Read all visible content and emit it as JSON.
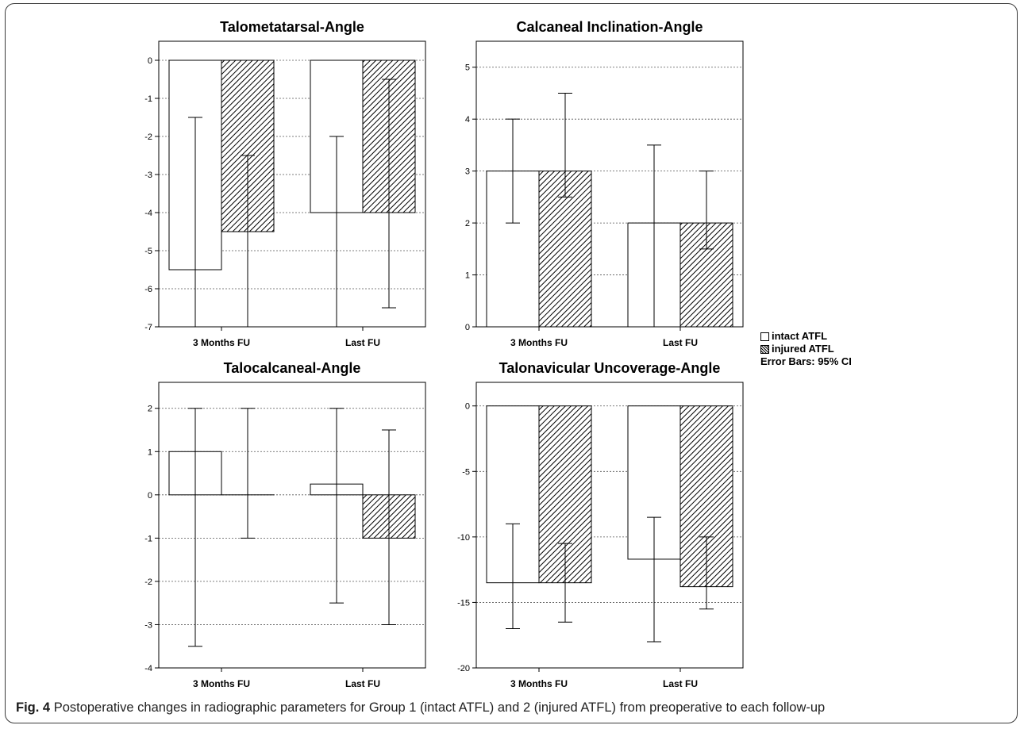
{
  "chart_data": [
    {
      "type": "bar",
      "title": "Talometatarsal-Angle",
      "categories": [
        "3 Months FU",
        "Last FU"
      ],
      "ylim": [
        -7,
        0.5
      ],
      "yticks": [
        0,
        -1,
        -2,
        -3,
        -4,
        -5,
        -6,
        -7
      ],
      "series": [
        {
          "name": "intact ATFL",
          "values": [
            -5.5,
            -4
          ],
          "ci_low": [
            -7,
            -7
          ],
          "ci_high": [
            -1.5,
            -2
          ]
        },
        {
          "name": "injured ATFL",
          "values": [
            -4.5,
            -4
          ],
          "ci_low": [
            -7,
            -6.5
          ],
          "ci_high": [
            -2.5,
            -0.5
          ]
        }
      ],
      "grid": true
    },
    {
      "type": "bar",
      "title": "Calcaneal Inclination-Angle",
      "categories": [
        "3 Months FU",
        "Last FU"
      ],
      "ylim": [
        0,
        5.5
      ],
      "yticks": [
        0,
        1,
        2,
        3,
        4,
        5
      ],
      "series": [
        {
          "name": "intact ATFL",
          "values": [
            3,
            2
          ],
          "ci_low": [
            2,
            0
          ],
          "ci_high": [
            4,
            3.5
          ]
        },
        {
          "name": "injured ATFL",
          "values": [
            3,
            2
          ],
          "ci_low": [
            2.5,
            1.5
          ],
          "ci_high": [
            4.5,
            3
          ]
        }
      ],
      "grid": true
    },
    {
      "type": "bar",
      "title": "Talocalcaneal-Angle",
      "categories": [
        "3 Months FU",
        "Last FU"
      ],
      "ylim": [
        -4,
        2.6
      ],
      "yticks": [
        2,
        1,
        0,
        -1,
        -2,
        -3,
        -4
      ],
      "series": [
        {
          "name": "intact ATFL",
          "values": [
            1,
            0.25
          ],
          "ci_low": [
            -3.5,
            -2.5
          ],
          "ci_high": [
            2,
            2
          ]
        },
        {
          "name": "injured ATFL",
          "values": [
            0,
            -1
          ],
          "ci_low": [
            -1,
            -3
          ],
          "ci_high": [
            2,
            1.5
          ]
        }
      ],
      "grid": true
    },
    {
      "type": "bar",
      "title": "Talonavicular Uncoverage-Angle",
      "categories": [
        "3 Months FU",
        "Last FU"
      ],
      "ylim": [
        -20,
        1.8
      ],
      "yticks": [
        0,
        -5,
        -10,
        -15,
        -20
      ],
      "series": [
        {
          "name": "intact ATFL",
          "values": [
            -13.5,
            -11.7
          ],
          "ci_low": [
            -17,
            -18
          ],
          "ci_high": [
            -9,
            -8.5
          ]
        },
        {
          "name": "injured ATFL",
          "values": [
            -13.5,
            -13.8
          ],
          "ci_low": [
            -16.5,
            -15.5
          ],
          "ci_high": [
            -10.5,
            -10
          ]
        }
      ],
      "grid": true
    }
  ],
  "legend": {
    "intact": "intact ATFL",
    "injured": "injured ATFL",
    "error_note": "Error Bars: 95% CI"
  },
  "caption": {
    "label": "Fig. 4",
    "text": "Postoperative changes in radiographic parameters for Group 1 (intact ATFL) and 2 (injured ATFL) from preoperative to each follow-up"
  }
}
